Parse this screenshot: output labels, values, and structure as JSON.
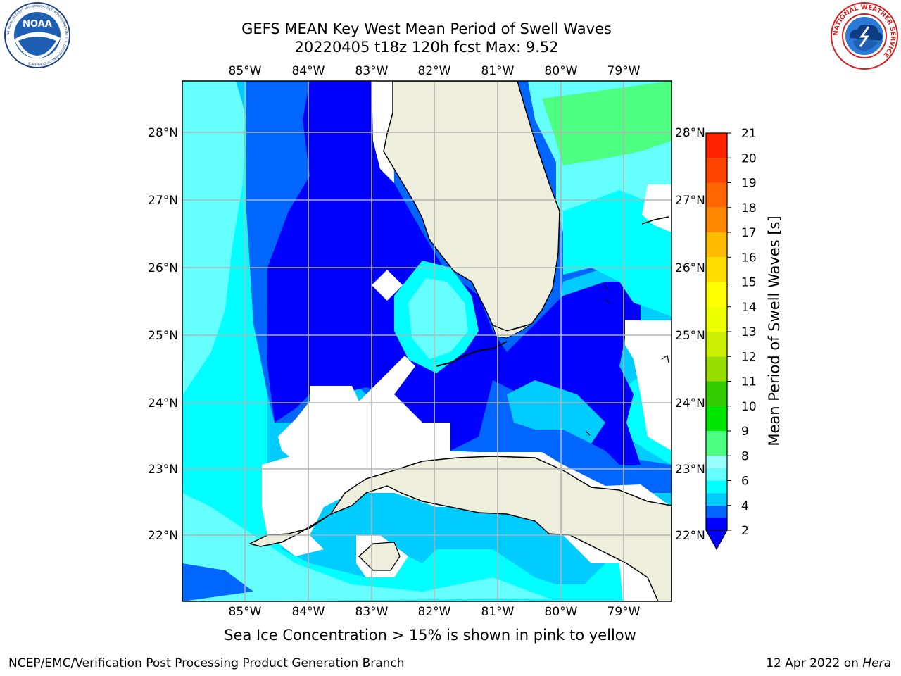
{
  "header": {
    "title_line1": "GEFS MEAN Key West Mean Period of Swell Waves",
    "title_line2": "20220405 t18z 120h fcst   Max: 9.52"
  },
  "logos": {
    "noaa": {
      "text": "NOAA",
      "ring_text": "NATIONAL OCEANIC AND ATMOSPHERIC ADMINISTRATION · U.S. DEPARTMENT OF COMMERCE"
    },
    "nws": {
      "ring_text": "NATIONAL WEATHER SERVICE"
    }
  },
  "map": {
    "lon_labels": [
      "85°W",
      "84°W",
      "83°W",
      "82°W",
      "81°W",
      "80°W",
      "79°W"
    ],
    "lat_labels": [
      "28°N",
      "27°N",
      "26°N",
      "25°N",
      "24°N",
      "23°N",
      "22°N"
    ],
    "colors": {
      "land": "#eeeedd",
      "gridline": "#b4b4b4",
      "coast": "#000000"
    }
  },
  "colorbar": {
    "label": "Mean Period of Swell Waves [s]",
    "ticks": [
      "2",
      "4",
      "6",
      "8",
      "9",
      "10",
      "11",
      "12",
      "13",
      "14",
      "15",
      "16",
      "17",
      "18",
      "19",
      "20",
      "21"
    ],
    "colors": [
      "#0000ff",
      "#0066ff",
      "#00ccff",
      "#00ffff",
      "#66ffff",
      "#99ffff",
      "#4dff80",
      "#00e600",
      "#33cc00",
      "#99dd00",
      "#ccee00",
      "#eeff00",
      "#ffff00",
      "#ffdd00",
      "#ffbb00",
      "#ff8800",
      "#ff6600",
      "#ff4400",
      "#ff2200",
      "#ff0000"
    ],
    "under_color": "#0000ff"
  },
  "footer": {
    "note": "Sea Ice Concentration > 15% is shown in pink to yellow",
    "branch": "NCEP/EMC/Verification Post Processing Product Generation Branch",
    "date": "12 Apr 2022 on ",
    "host": "Hera"
  }
}
